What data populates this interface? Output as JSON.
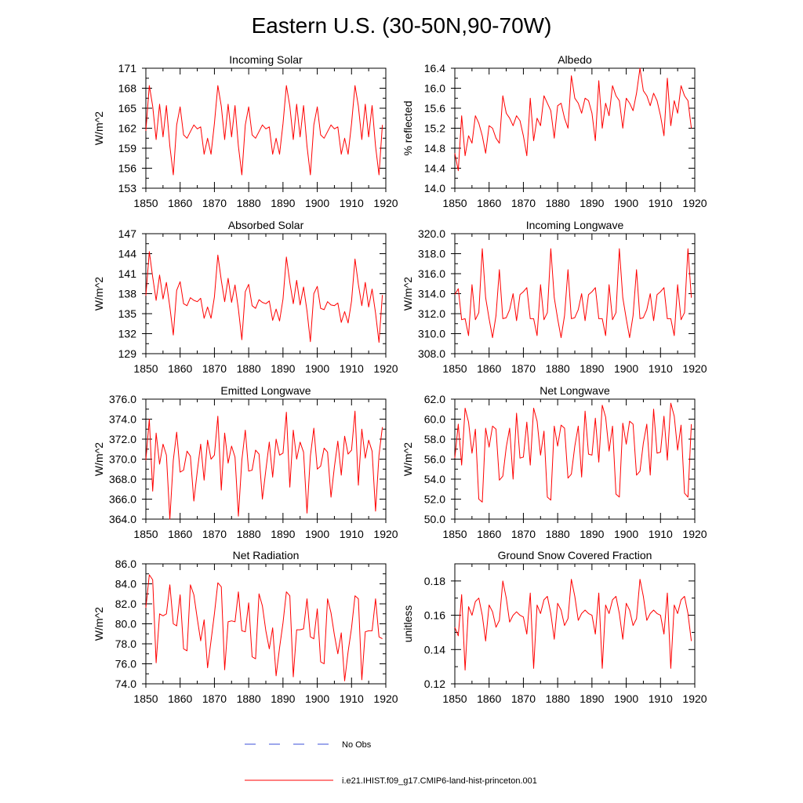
{
  "title": "Eastern U.S. (30-50N,90-70W)",
  "legend": {
    "obs_label": "No Obs",
    "model_label": "i.e21.IHIST.f09_g17.CMIP6-land-hist-princeton.001",
    "obs_color": "#3b4fd8",
    "model_color": "#ff0000"
  },
  "colors": {
    "line": "#ff0000",
    "axis": "#000000"
  },
  "chart_data": [
    {
      "type": "line",
      "title": "Incoming Solar",
      "ylabel": "W/m^2",
      "xlim": [
        1850,
        1920
      ],
      "ylim": [
        153,
        171
      ],
      "xticks": [
        1850,
        1860,
        1870,
        1880,
        1890,
        1900,
        1910,
        1920
      ],
      "yticks": [
        153,
        156,
        159,
        162,
        165,
        168,
        171
      ],
      "ytick_labels": [
        "153",
        "156",
        "159",
        "162",
        "165",
        "168",
        "171"
      ],
      "series": [
        {
          "x_start": 1850,
          "values": [
            161.6,
            168.4,
            165.3,
            160.3,
            165.6,
            160.7,
            165.4,
            159.3,
            155.0,
            162.5,
            165.2,
            161.0,
            160.5,
            161.5,
            162.5,
            161.9,
            162.2,
            158.1,
            160.5,
            158.1,
            162.7,
            168.4,
            165.3,
            160.3,
            165.6,
            160.7,
            165.4,
            159.3,
            155.0,
            162.5,
            165.2,
            161.0,
            160.5,
            161.5,
            162.5,
            161.9,
            162.2,
            158.1,
            160.5,
            158.1,
            162.7,
            168.4,
            165.3,
            160.3,
            165.6,
            160.7,
            165.4,
            159.3,
            155.0,
            162.5,
            165.2,
            161.0,
            160.5,
            161.5,
            162.5,
            161.9,
            162.2,
            158.1,
            160.5,
            158.1,
            162.7,
            168.4,
            165.3,
            160.3,
            165.6,
            160.7,
            165.4,
            159.3,
            155.0,
            162.5
          ]
        }
      ]
    },
    {
      "type": "line",
      "title": "Albedo",
      "ylabel": "% reflected",
      "xlim": [
        1850,
        1920
      ],
      "ylim": [
        14.0,
        16.4
      ],
      "xticks": [
        1850,
        1860,
        1870,
        1880,
        1890,
        1900,
        1910,
        1920
      ],
      "yticks": [
        14.0,
        14.4,
        14.8,
        15.2,
        15.6,
        16.0,
        16.4
      ],
      "ytick_labels": [
        "14.0",
        "14.4",
        "14.8",
        "15.2",
        "15.6",
        "16.0",
        "16.4"
      ],
      "series": [
        {
          "x_start": 1850,
          "values": [
            14.7,
            14.35,
            15.45,
            14.65,
            15.05,
            14.9,
            15.45,
            15.3,
            15.05,
            14.7,
            15.25,
            15.2,
            15.0,
            14.9,
            15.85,
            15.5,
            15.4,
            15.25,
            15.45,
            15.35,
            15.05,
            14.65,
            15.8,
            14.95,
            15.4,
            15.25,
            15.85,
            15.7,
            15.55,
            15.0,
            15.65,
            15.7,
            15.4,
            15.2,
            16.25,
            15.8,
            15.7,
            15.5,
            15.8,
            15.75,
            15.5,
            14.95,
            16.15,
            15.2,
            15.7,
            15.45,
            16.05,
            15.85,
            15.75,
            15.2,
            15.8,
            15.7,
            15.55,
            15.9,
            16.4,
            15.95,
            15.85,
            15.65,
            15.9,
            15.75,
            15.45,
            15.05,
            16.2,
            15.25,
            15.75,
            15.5,
            16.05,
            15.85,
            15.75,
            15.2
          ]
        }
      ]
    },
    {
      "type": "line",
      "title": "Absorbed Solar",
      "ylabel": "W/m^2",
      "xlim": [
        1850,
        1920
      ],
      "ylim": [
        129,
        147
      ],
      "xticks": [
        1850,
        1860,
        1870,
        1880,
        1890,
        1900,
        1910,
        1920
      ],
      "yticks": [
        129,
        132,
        135,
        138,
        141,
        144,
        147
      ],
      "ytick_labels": [
        "129",
        "132",
        "135",
        "138",
        "141",
        "144",
        "147"
      ],
      "series": [
        {
          "x_start": 1850,
          "values": [
            137.7,
            144.3,
            140.5,
            137.0,
            140.8,
            137.2,
            139.7,
            136.0,
            131.8,
            138.5,
            139.8,
            136.5,
            136.2,
            137.4,
            137.0,
            136.8,
            137.3,
            134.3,
            136.0,
            134.3,
            137.5,
            143.8,
            140.0,
            136.8,
            140.3,
            136.7,
            139.3,
            135.7,
            131.1,
            138.3,
            139.4,
            136.2,
            135.8,
            137.1,
            136.7,
            136.5,
            136.9,
            134.0,
            135.7,
            133.9,
            137.2,
            143.5,
            139.7,
            136.5,
            140.0,
            136.3,
            139.0,
            135.4,
            130.8,
            138.0,
            139.1,
            135.8,
            135.6,
            136.8,
            136.3,
            136.2,
            136.6,
            133.7,
            135.3,
            133.6,
            136.9,
            143.2,
            139.4,
            136.2,
            139.7,
            136.0,
            138.7,
            135.1,
            130.7,
            137.8
          ]
        }
      ]
    },
    {
      "type": "line",
      "title": "Incoming Longwave",
      "ylabel": "W/m^2",
      "xlim": [
        1850,
        1920
      ],
      "ylim": [
        308.0,
        320.0
      ],
      "xticks": [
        1850,
        1860,
        1870,
        1880,
        1890,
        1900,
        1910,
        1920
      ],
      "yticks": [
        308.0,
        310.0,
        312.0,
        314.0,
        316.0,
        318.0,
        320.0
      ],
      "ytick_labels": [
        "308.0",
        "310.0",
        "312.0",
        "314.0",
        "316.0",
        "318.0",
        "320.0"
      ],
      "series": [
        {
          "x_start": 1850,
          "values": [
            313.9,
            314.5,
            311.4,
            311.5,
            309.8,
            314.9,
            311.4,
            312.1,
            318.5,
            313.6,
            311.5,
            309.6,
            311.8,
            316.4,
            311.5,
            311.6,
            312.4,
            314.0,
            311.3,
            313.9,
            314.2,
            314.6,
            311.5,
            311.5,
            309.8,
            314.9,
            311.4,
            312.1,
            318.5,
            313.6,
            311.5,
            309.6,
            311.8,
            316.4,
            311.5,
            311.6,
            312.4,
            314.0,
            311.3,
            313.9,
            314.2,
            314.6,
            311.5,
            311.5,
            309.8,
            314.9,
            311.4,
            312.1,
            318.5,
            313.6,
            311.5,
            309.6,
            311.8,
            316.4,
            311.5,
            311.6,
            312.4,
            314.0,
            311.3,
            313.9,
            314.2,
            314.6,
            311.5,
            311.5,
            309.8,
            314.9,
            311.4,
            312.1,
            318.5,
            313.6
          ]
        }
      ]
    },
    {
      "type": "line",
      "title": "Emitted Longwave",
      "ylabel": "W/m^2",
      "xlim": [
        1850,
        1920
      ],
      "ylim": [
        364.0,
        376.0
      ],
      "xticks": [
        1850,
        1860,
        1870,
        1880,
        1890,
        1900,
        1910,
        1920
      ],
      "yticks": [
        364.0,
        366.0,
        368.0,
        370.0,
        372.0,
        374.0,
        376.0
      ],
      "ytick_labels": [
        "364.0",
        "366.0",
        "368.0",
        "370.0",
        "372.0",
        "374.0",
        "376.0"
      ],
      "series": [
        {
          "x_start": 1850,
          "values": [
            369.9,
            374.0,
            366.8,
            372.6,
            369.5,
            371.5,
            370.4,
            364.0,
            369.9,
            372.7,
            368.7,
            368.9,
            370.8,
            370.3,
            365.8,
            368.8,
            371.5,
            367.9,
            371.9,
            370.0,
            370.4,
            374.3,
            366.9,
            372.6,
            369.6,
            371.3,
            370.2,
            364.3,
            369.9,
            372.9,
            368.8,
            368.9,
            370.9,
            370.5,
            366.0,
            368.9,
            371.7,
            368.2,
            372.0,
            370.4,
            370.6,
            374.7,
            367.2,
            372.9,
            370.0,
            371.7,
            370.7,
            364.6,
            370.3,
            373.1,
            369.0,
            369.3,
            371.1,
            370.7,
            366.2,
            369.2,
            371.8,
            368.4,
            372.3,
            370.5,
            370.9,
            374.8,
            367.4,
            373.0,
            370.1,
            371.9,
            370.8,
            364.8,
            370.4,
            373.2
          ]
        }
      ]
    },
    {
      "type": "line",
      "title": "Net Longwave",
      "ylabel": "W/m^2",
      "xlim": [
        1850,
        1920
      ],
      "ylim": [
        50.0,
        62.0
      ],
      "xticks": [
        1850,
        1860,
        1870,
        1880,
        1890,
        1900,
        1910,
        1920
      ],
      "yticks": [
        50.0,
        52.0,
        54.0,
        56.0,
        58.0,
        60.0,
        62.0
      ],
      "ytick_labels": [
        "50.0",
        "52.0",
        "54.0",
        "56.0",
        "58.0",
        "60.0",
        "62.0"
      ],
      "series": [
        {
          "x_start": 1850,
          "values": [
            56.1,
            59.5,
            55.4,
            61.1,
            59.7,
            56.6,
            59.0,
            52.0,
            51.7,
            59.1,
            57.2,
            59.3,
            59.0,
            53.9,
            54.3,
            57.2,
            59.1,
            54.0,
            60.6,
            56.1,
            56.2,
            59.7,
            55.4,
            61.1,
            59.8,
            56.4,
            58.8,
            52.2,
            51.9,
            59.3,
            57.3,
            59.4,
            59.1,
            54.1,
            54.5,
            57.3,
            59.3,
            54.2,
            60.8,
            56.5,
            56.4,
            60.1,
            55.7,
            61.4,
            60.2,
            56.8,
            59.3,
            52.5,
            52.2,
            59.6,
            57.5,
            59.8,
            59.5,
            54.4,
            54.8,
            57.6,
            59.5,
            54.4,
            61.0,
            56.6,
            56.7,
            60.3,
            55.9,
            61.6,
            60.3,
            56.9,
            59.4,
            52.6,
            52.2,
            59.5
          ]
        }
      ]
    },
    {
      "type": "line",
      "title": "Net Radiation",
      "ylabel": "W/m^2",
      "xlim": [
        1850,
        1920
      ],
      "ylim": [
        74.0,
        86.0
      ],
      "xticks": [
        1850,
        1860,
        1870,
        1880,
        1890,
        1900,
        1910,
        1920
      ],
      "yticks": [
        74.0,
        76.0,
        78.0,
        80.0,
        82.0,
        84.0,
        86.0
      ],
      "ytick_labels": [
        "74.0",
        "76.0",
        "78.0",
        "80.0",
        "82.0",
        "84.0",
        "86.0"
      ],
      "series": [
        {
          "x_start": 1850,
          "values": [
            81.6,
            84.9,
            84.4,
            76.1,
            81.0,
            80.8,
            81.0,
            83.9,
            80.0,
            79.8,
            82.9,
            77.5,
            77.3,
            83.9,
            82.9,
            80.5,
            78.3,
            80.4,
            75.6,
            78.3,
            81.0,
            84.1,
            83.7,
            75.4,
            80.2,
            80.3,
            80.2,
            83.2,
            79.3,
            79.2,
            82.1,
            76.7,
            76.5,
            83.0,
            81.8,
            79.3,
            77.5,
            79.6,
            74.8,
            77.6,
            80.1,
            83.2,
            82.8,
            74.7,
            79.4,
            79.4,
            79.5,
            82.5,
            78.7,
            78.5,
            81.5,
            76.2,
            76.0,
            82.5,
            81.1,
            78.9,
            77.0,
            79.1,
            74.3,
            77.2,
            79.6,
            82.8,
            82.5,
            74.4,
            79.2,
            79.3,
            79.3,
            82.5,
            78.7,
            78.5
          ]
        }
      ]
    },
    {
      "type": "line",
      "title": "Ground Snow Covered Fraction",
      "ylabel": "unitless",
      "xlim": [
        1850,
        1920
      ],
      "ylim": [
        0.12,
        0.19
      ],
      "xticks": [
        1850,
        1860,
        1870,
        1880,
        1890,
        1900,
        1910,
        1920
      ],
      "yticks": [
        0.12,
        0.14,
        0.16,
        0.18
      ],
      "ytick_labels": [
        "0.12",
        "0.14",
        "0.16",
        "0.18"
      ],
      "series": [
        {
          "x_start": 1850,
          "values": [
            0.153,
            0.148,
            0.172,
            0.128,
            0.165,
            0.16,
            0.168,
            0.17,
            0.16,
            0.145,
            0.166,
            0.162,
            0.153,
            0.157,
            0.18,
            0.17,
            0.156,
            0.16,
            0.162,
            0.16,
            0.159,
            0.149,
            0.173,
            0.129,
            0.166,
            0.161,
            0.169,
            0.171,
            0.161,
            0.146,
            0.167,
            0.163,
            0.154,
            0.158,
            0.181,
            0.171,
            0.157,
            0.161,
            0.163,
            0.161,
            0.16,
            0.149,
            0.173,
            0.129,
            0.166,
            0.161,
            0.169,
            0.171,
            0.161,
            0.146,
            0.167,
            0.163,
            0.154,
            0.158,
            0.181,
            0.171,
            0.157,
            0.161,
            0.163,
            0.161,
            0.16,
            0.149,
            0.173,
            0.129,
            0.166,
            0.161,
            0.169,
            0.171,
            0.161,
            0.145
          ]
        }
      ]
    }
  ]
}
